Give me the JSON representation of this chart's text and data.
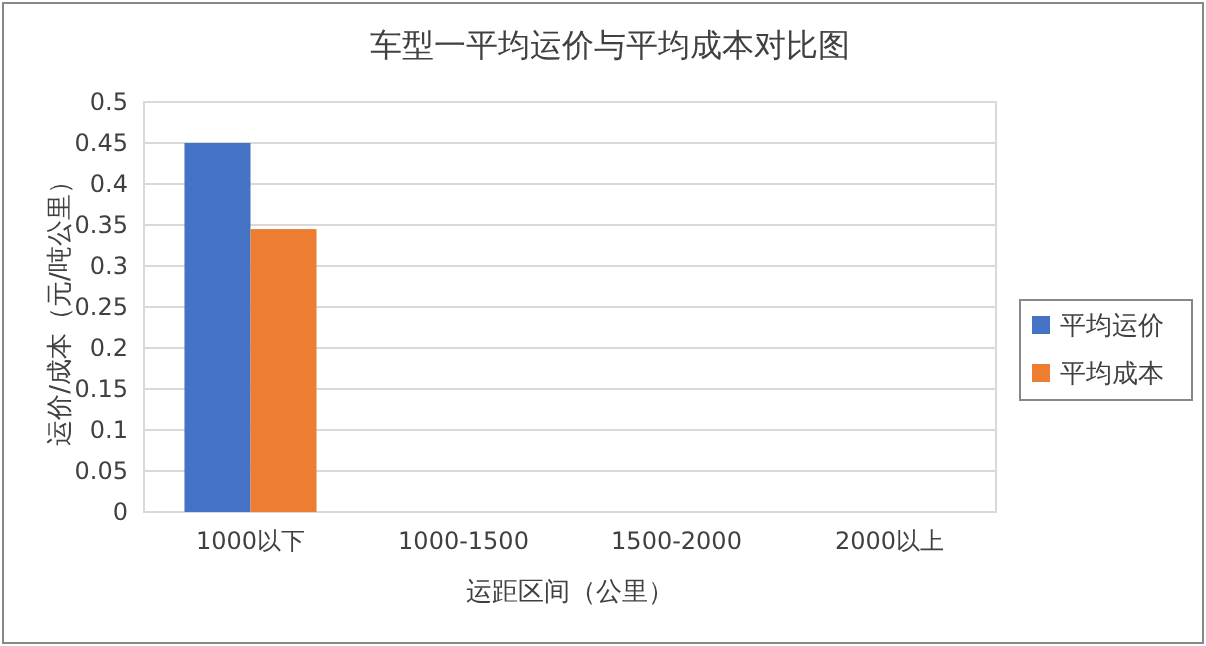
{
  "chart_data": {
    "type": "bar",
    "title": "车型一平均运价与平均成本对比图",
    "xlabel": "运距区间（公里）",
    "ylabel": "运价/成本（元/吨公里）",
    "categories": [
      "1000以下",
      "1000-1500",
      "1500-2000",
      "2000以上"
    ],
    "series": [
      {
        "name": "平均运价",
        "color": "#4472c4",
        "values": [
          0.45,
          null,
          null,
          null
        ]
      },
      {
        "name": "平均成本",
        "color": "#ed7d31",
        "values": [
          0.345,
          null,
          null,
          null
        ]
      }
    ],
    "ylim": [
      0,
      0.5
    ],
    "yticks": [
      0,
      0.05,
      0.1,
      0.15,
      0.2,
      0.25,
      0.3,
      0.35,
      0.4,
      0.45,
      0.5
    ],
    "grid": "y",
    "legend": "right"
  }
}
